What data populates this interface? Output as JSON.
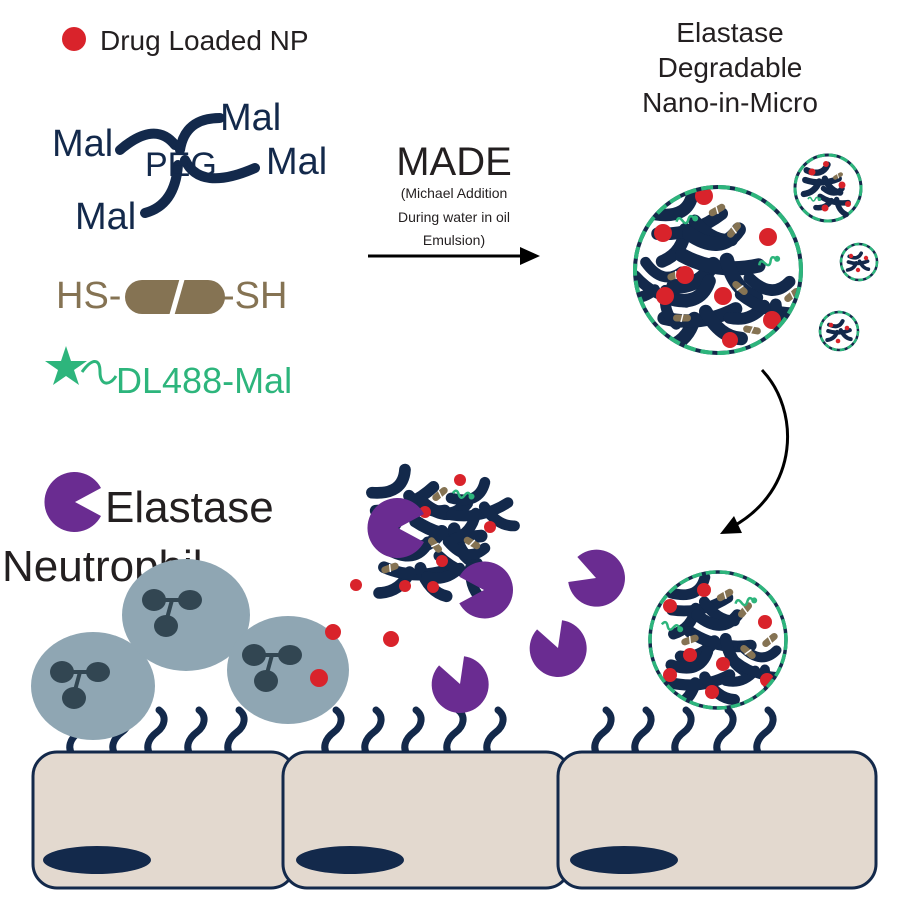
{
  "legend": {
    "np_label": "Drug Loaded NP",
    "peg_label": "PEG",
    "mal_label": "Mal",
    "crosslinker_left": "HS-",
    "crosslinker_right": "-SH",
    "dye_label": "DL488-Mal",
    "elastase_label": "Elastase",
    "neutrophil_label": "Neutrophil"
  },
  "process": {
    "title": "MADE",
    "desc_line1": "(Michael Addition",
    "desc_line2": "During water in oil",
    "desc_line3": "Emulsion)"
  },
  "product": {
    "line1": "Elastase",
    "line2": "Degradable",
    "line3": "Nano-in-Micro"
  },
  "colors": {
    "navy": "#13294b",
    "tan": "#857353",
    "green": "#2db57c",
    "red": "#d9232b",
    "purple": "#6a2c91",
    "cell_body": "#8fa6b3",
    "cell_nucleus": "#324652",
    "tissue": "#e3d9cf"
  }
}
